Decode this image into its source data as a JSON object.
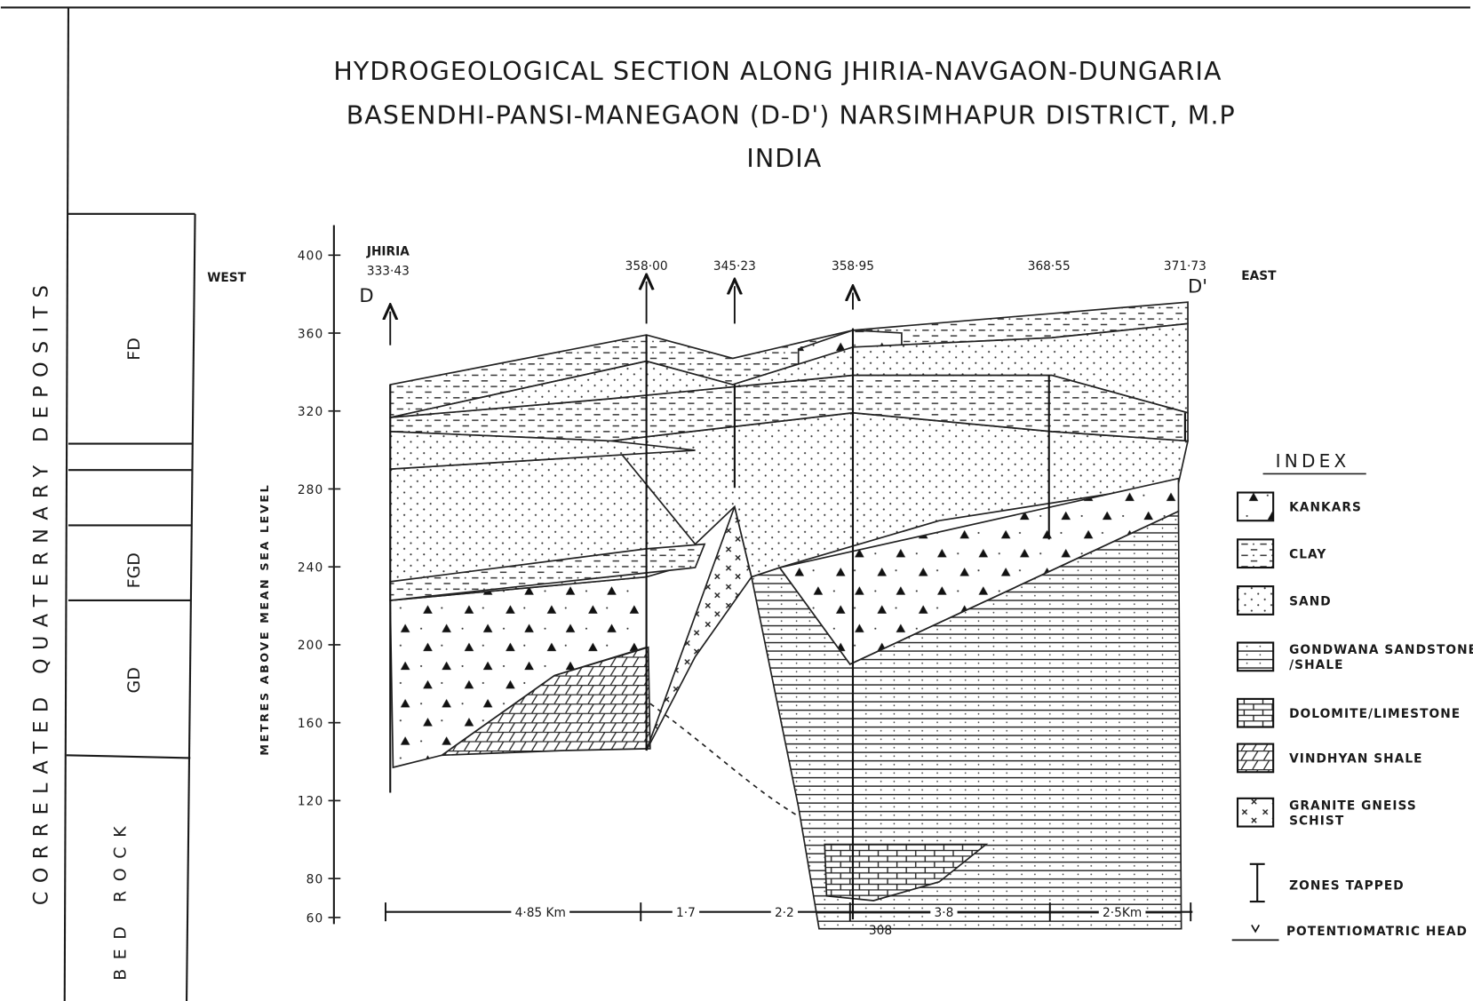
{
  "header": {
    "title": [
      "HYDROGEOLOGICAL SECTION ALONG JHIRIA-NAVGAON-DUNGARIA",
      "BASENDHI-PANSI-MANEGAON (D-D') NARSIMHAPUR DISTRICT, M.P",
      "INDIA"
    ]
  },
  "side_column": {
    "group_label": "CORRELATED QUATERNARY DEPOSITS",
    "units": [
      "FD",
      "FGD",
      "GD",
      "BED ROCK"
    ]
  },
  "section": {
    "west": "WEST",
    "east": "EAST",
    "start": "D",
    "end": "D'",
    "axis_label": "METRES ABOVE MEAN SEA LEVEL",
    "yticks": [
      400,
      360,
      320,
      280,
      240,
      200,
      160,
      120,
      80,
      60
    ],
    "wells": [
      {
        "name": "JHIRIA",
        "elevation": "333·43"
      },
      {
        "elevation": "358·00"
      },
      {
        "elevation": "345·23"
      },
      {
        "elevation": "358·95"
      },
      {
        "elevation": "368·55"
      },
      {
        "elevation": "371·73"
      }
    ],
    "distances": [
      "4·85 Km",
      "1·7",
      "2·2",
      "3·8",
      "2·5Km"
    ],
    "depth_note": "308"
  },
  "index": {
    "title": "INDEX",
    "items": [
      [
        "KANKARS"
      ],
      [
        "CLAY"
      ],
      [
        "SAND"
      ],
      [
        "GONDWANA SANDSTONE",
        "/SHALE"
      ],
      [
        "DOLOMITE/LIMESTONE"
      ],
      [
        "VINDHYAN SHALE"
      ],
      [
        "GRANITE GNEISS",
        "SCHIST"
      ],
      [
        "ZONES TAPPED"
      ],
      [
        "POTENTIOMATRIC HEAD"
      ]
    ]
  }
}
